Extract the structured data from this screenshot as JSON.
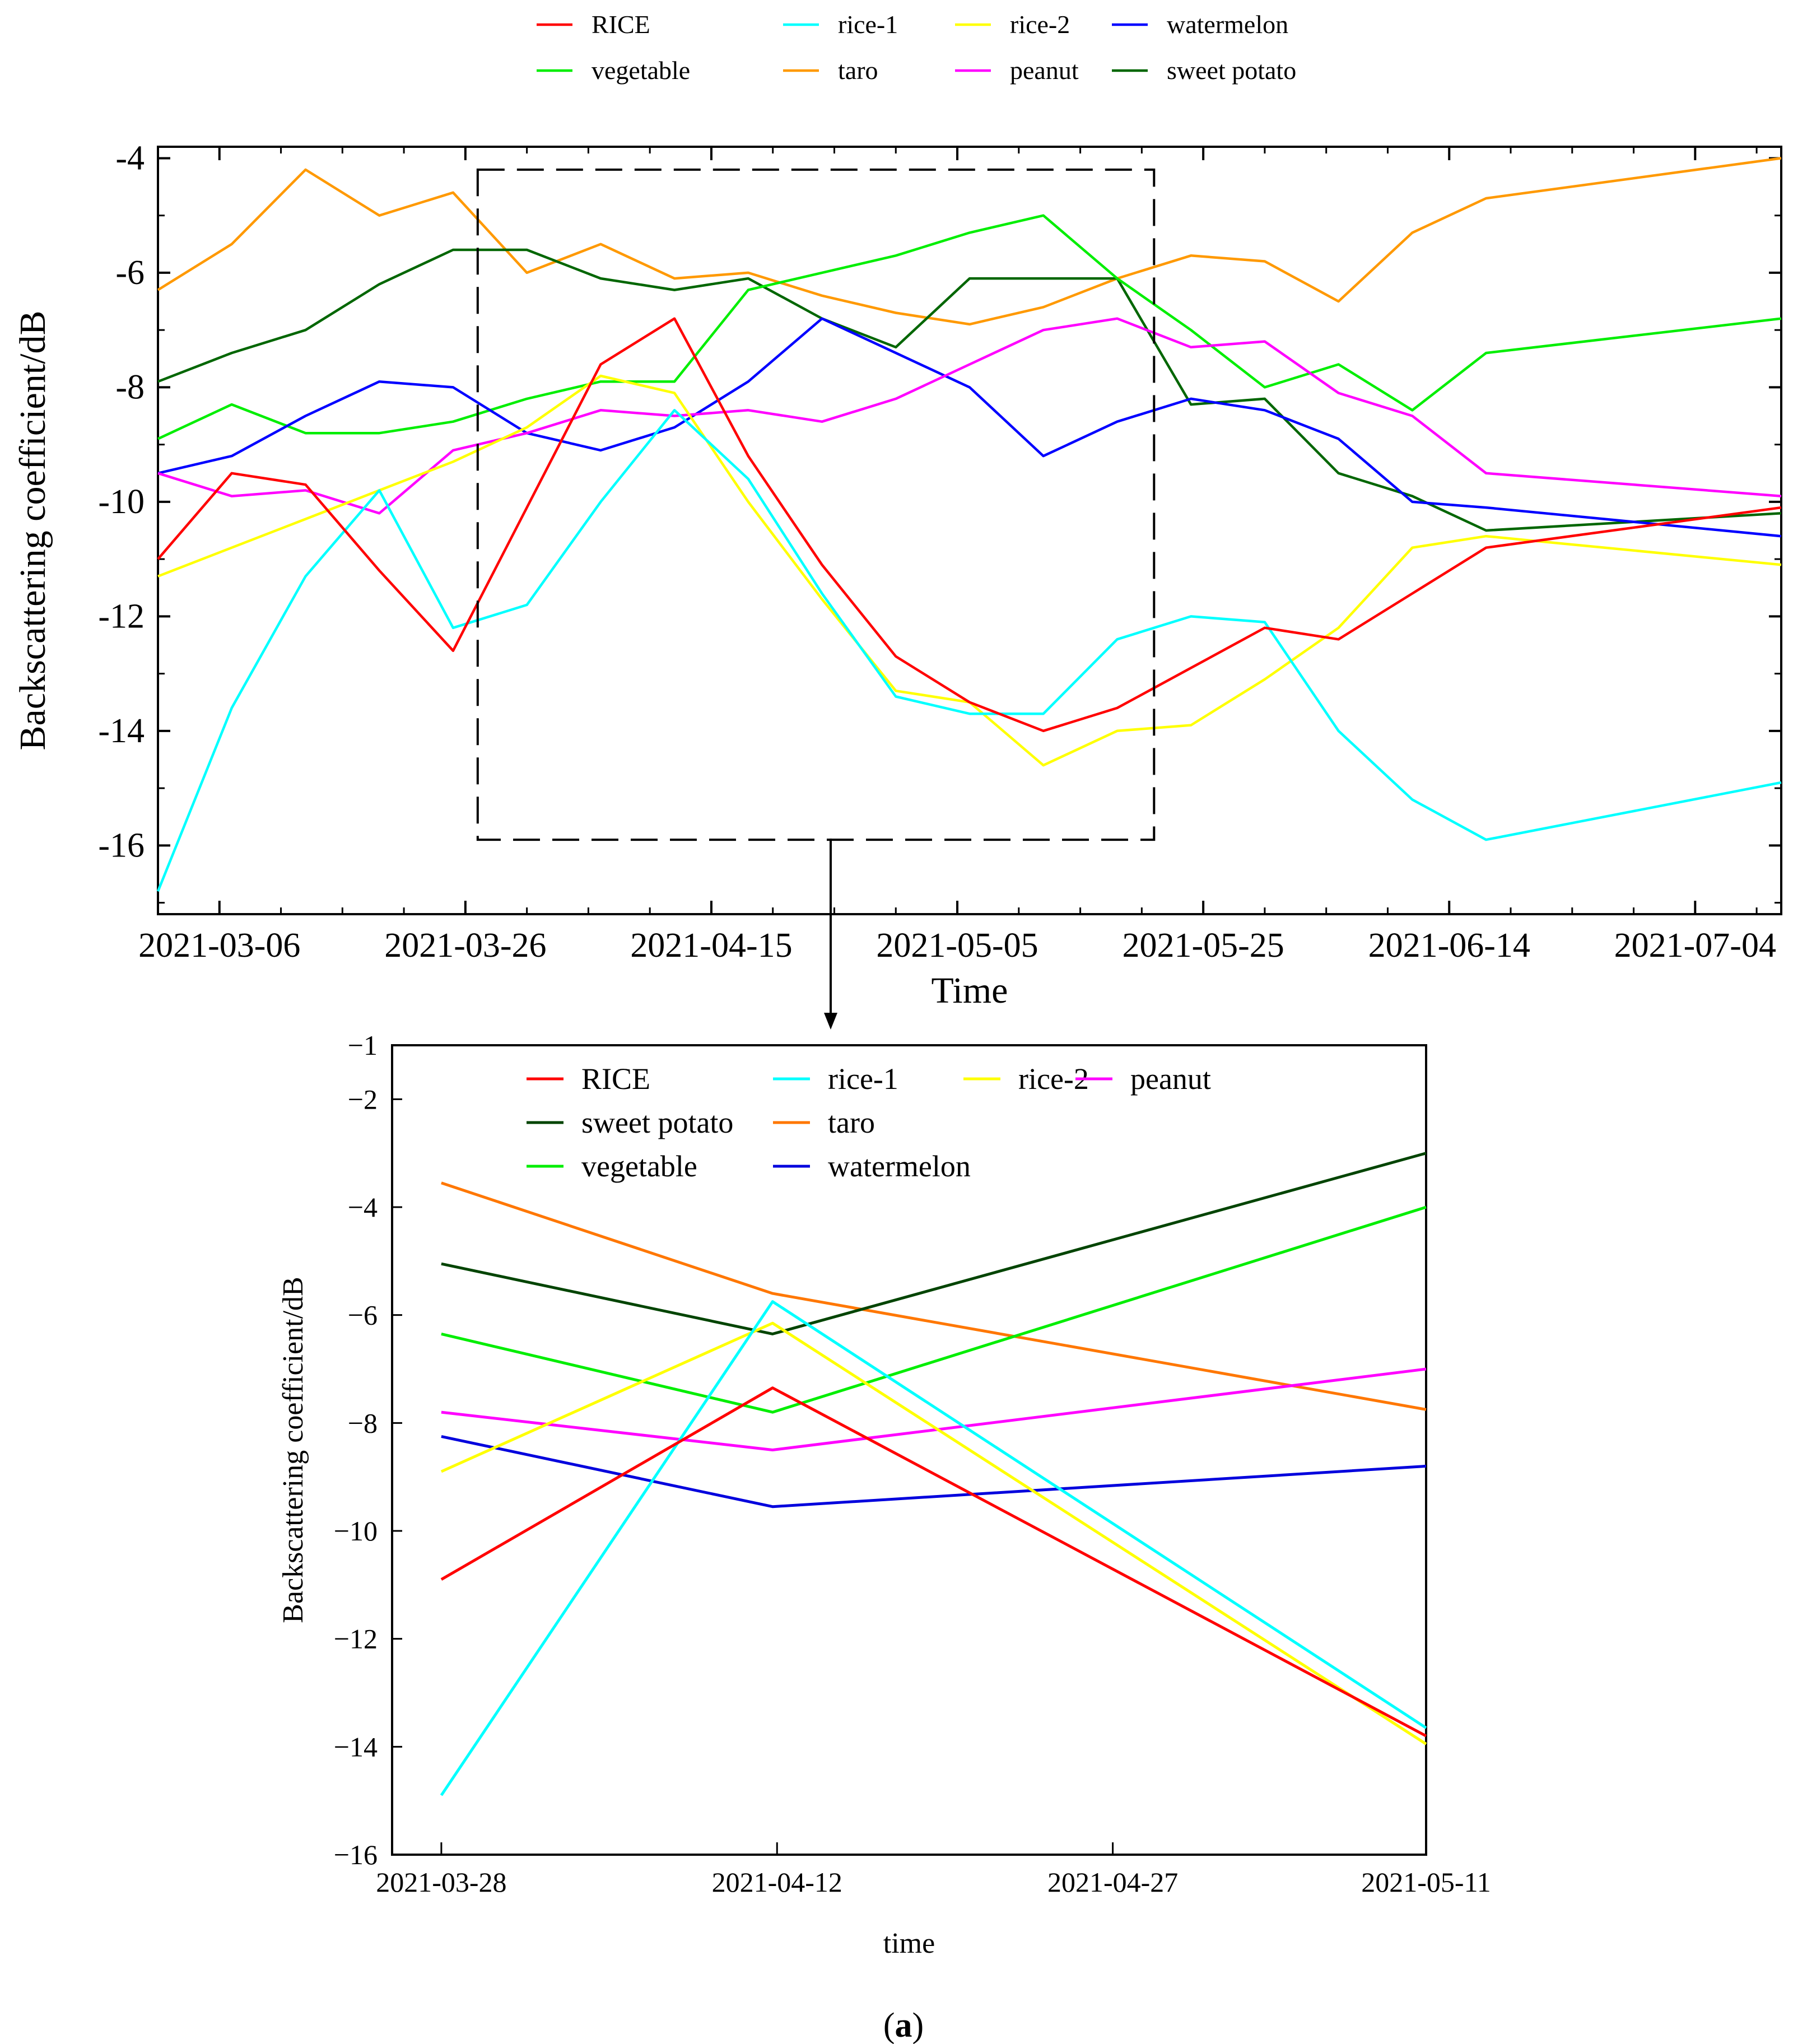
{
  "figure": {
    "caption_open": "(",
    "caption_letter": "a",
    "caption_close": ")"
  },
  "colors": {
    "RICE": "#ff0000",
    "rice-1": "#00ffff",
    "rice-2": "#ffff00",
    "watermelon": "#0000ff",
    "vegetable": "#00ee00",
    "taro": "#ff9900",
    "peanut": "#ff00ff",
    "sweet potato": "#006600",
    "zoom_taro": "#ff7700",
    "zoom_watermelon": "#0000dd",
    "zoom_sweet_potato": "#004400"
  },
  "chart_data": [
    {
      "type": "line",
      "title": "",
      "xlabel": "Time",
      "ylabel": "Backscattering coefficient/dB",
      "ylim": [
        -17.2,
        -3.8
      ],
      "yticks": [
        -4,
        -6,
        -8,
        -10,
        -12,
        -14,
        -16
      ],
      "ytick_labels": [
        "-4",
        "-6",
        "-8",
        "-10",
        "-12",
        "-14",
        "-16"
      ],
      "xtick_labels": [
        "2021-03-06",
        "2021-03-26",
        "2021-04-15",
        "2021-05-05",
        "2021-05-25",
        "2021-06-14",
        "2021-07-04"
      ],
      "xtick_days": [
        5,
        25,
        45,
        65,
        85,
        105,
        125
      ],
      "x_range_days": [
        0,
        132
      ],
      "x_origin": "2021-03-01",
      "grid": false,
      "legend_position": "top, above plot",
      "x": [
        0,
        6,
        12,
        18,
        24,
        30,
        36,
        42,
        48,
        54,
        60,
        66,
        72,
        78,
        84,
        90,
        96,
        102,
        108,
        132
      ],
      "series": [
        {
          "name": "RICE",
          "values": [
            -11.0,
            -9.5,
            -9.7,
            -11.2,
            -12.6,
            -10.1,
            -7.6,
            -6.8,
            -9.2,
            -11.1,
            -12.7,
            -13.5,
            -14.0,
            -13.6,
            -12.9,
            -12.2,
            -12.4,
            -11.6,
            -10.8,
            -10.1
          ]
        },
        {
          "name": "rice-1",
          "values": [
            -16.8,
            -13.6,
            -11.3,
            -9.8,
            -12.2,
            -11.8,
            -10.0,
            -8.4,
            -9.6,
            -11.6,
            -13.4,
            -13.7,
            -13.7,
            -12.4,
            -12.0,
            -12.1,
            -14.0,
            -15.2,
            -15.9,
            -14.9
          ]
        },
        {
          "name": "rice-2",
          "values": [
            -11.3,
            -10.8,
            -10.3,
            -9.8,
            -9.3,
            -8.7,
            -7.8,
            -8.1,
            -10.0,
            -11.7,
            -13.3,
            -13.5,
            -14.6,
            -14.0,
            -13.9,
            -13.1,
            -12.2,
            -10.8,
            -10.6,
            -11.1
          ]
        },
        {
          "name": "watermelon",
          "values": [
            -9.5,
            -9.2,
            -8.5,
            -7.9,
            -8.0,
            -8.8,
            -9.1,
            -8.7,
            -7.9,
            -6.8,
            -7.4,
            -8.0,
            -9.2,
            -8.6,
            -8.2,
            -8.4,
            -8.9,
            -10.0,
            -10.1,
            -10.6
          ]
        },
        {
          "name": "vegetable",
          "values": [
            -8.9,
            -8.3,
            -8.8,
            -8.8,
            -8.6,
            -8.2,
            -7.9,
            -7.9,
            -6.3,
            -6.0,
            -5.7,
            -5.3,
            -5.0,
            -6.1,
            -7.0,
            -8.0,
            -7.6,
            -8.4,
            -7.4,
            -6.8
          ]
        },
        {
          "name": "taro",
          "values": [
            -6.3,
            -5.5,
            -4.2,
            -5.0,
            -4.6,
            -6.0,
            -5.5,
            -6.1,
            -6.0,
            -6.4,
            -6.7,
            -6.9,
            -6.6,
            -6.1,
            -5.7,
            -5.8,
            -6.5,
            -5.3,
            -4.7,
            -4.0
          ]
        },
        {
          "name": "peanut",
          "values": [
            -9.5,
            -9.9,
            -9.8,
            -10.2,
            -9.1,
            -8.8,
            -8.4,
            -8.5,
            -8.4,
            -8.6,
            -8.2,
            -7.6,
            -7.0,
            -6.8,
            -7.3,
            -7.2,
            -8.1,
            -8.5,
            -9.5,
            -9.9
          ]
        },
        {
          "name": "sweet potato",
          "values": [
            -7.9,
            -7.4,
            -7.0,
            -6.2,
            -5.6,
            -5.6,
            -6.1,
            -6.3,
            -6.1,
            -6.8,
            -7.3,
            -6.1,
            -6.1,
            -6.1,
            -8.3,
            -8.2,
            -9.5,
            -9.9,
            -10.5,
            -10.2
          ]
        }
      ],
      "zoom_box": {
        "x_days": [
          26,
          81
        ],
        "y": [
          -4.2,
          -15.9
        ]
      }
    },
    {
      "type": "line",
      "title": "",
      "xlabel": "time",
      "ylabel": "Backscattering coefficient/dB",
      "ylim": [
        -16,
        -1
      ],
      "yticks": [
        -1,
        -2,
        -4,
        -6,
        -8,
        -10,
        -12,
        -14,
        -16
      ],
      "ytick_labels": [
        "−1",
        "−2",
        "−4",
        "−6",
        "−8",
        "−10",
        "−12",
        "−14",
        "−16"
      ],
      "xtick_labels": [
        "2021-03-28",
        "2021-04-12",
        "2021-04-27",
        "2021-05-11"
      ],
      "xtick_days": [
        0,
        15,
        30,
        44
      ],
      "x_range_days": [
        -2.2,
        44
      ],
      "x_origin": "2021-03-28",
      "grid": false,
      "legend_position": "top-left, inside",
      "legend_rows": [
        [
          "RICE",
          "rice-1",
          "rice-2",
          "peanut"
        ],
        [
          "sweet potato",
          "taro"
        ],
        [
          "vegetable",
          "watermelon"
        ]
      ],
      "x": [
        0,
        14.8,
        44
      ],
      "series": [
        {
          "name": "RICE",
          "values": [
            -10.9,
            -7.35,
            -13.8
          ]
        },
        {
          "name": "rice-1",
          "values": [
            -14.9,
            -5.75,
            -13.65
          ]
        },
        {
          "name": "rice-2",
          "values": [
            -8.9,
            -6.15,
            -13.95
          ]
        },
        {
          "name": "peanut",
          "values": [
            -7.8,
            -8.5,
            -7.0
          ]
        },
        {
          "name": "sweet potato",
          "values": [
            -5.05,
            -6.35,
            -3.0
          ]
        },
        {
          "name": "taro",
          "values": [
            -3.55,
            -5.6,
            -7.75
          ]
        },
        {
          "name": "vegetable",
          "values": [
            -6.35,
            -7.8,
            -4.0
          ]
        },
        {
          "name": "watermelon",
          "values": [
            -8.25,
            -9.55,
            -8.8
          ]
        }
      ]
    }
  ]
}
